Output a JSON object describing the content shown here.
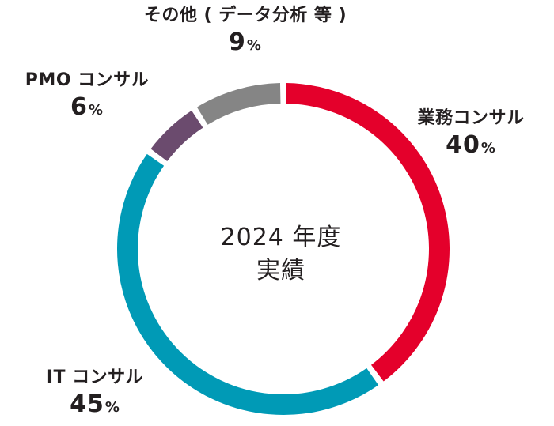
{
  "chart_data": {
    "type": "pie",
    "center_line1": "2024 年度",
    "center_line2": "実績",
    "unit": "%",
    "slices": [
      {
        "label": "業務コンサル",
        "value": 40,
        "color": "#e4002b"
      },
      {
        "label": "IT コンサル",
        "value": 45,
        "color": "#009ab6"
      },
      {
        "label": "PMO コンサル",
        "value": 6,
        "color": "#6b4b6e"
      },
      {
        "label": "その他 ( データ分析 等 )",
        "value": 9,
        "color": "#858585"
      }
    ]
  }
}
